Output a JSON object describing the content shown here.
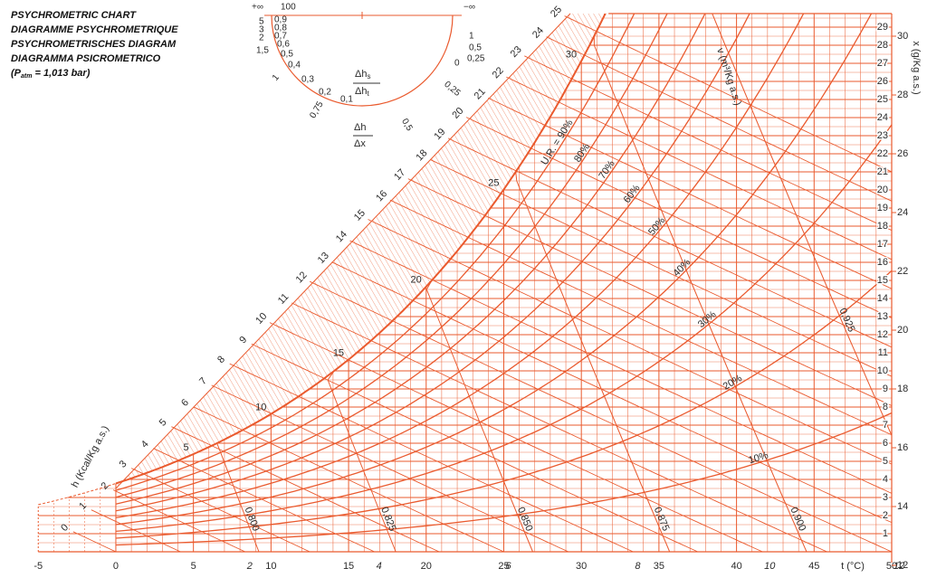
{
  "title_lines": [
    "PSYCHROMETRIC CHART",
    "DIAGRAMME PSYCHROMETRIQUE",
    "PSYCHROMETRISCHES DIAGRAM",
    "DIAGRAMMA PSICROMETRICO"
  ],
  "pressure": {
    "symbol": "(P",
    "subscript": "atm",
    "value": " = 1,013 bar)"
  },
  "protractor": {
    "top": [
      "+∞",
      "100",
      "−∞"
    ],
    "left": [
      "5",
      "3",
      "2",
      "1,5"
    ],
    "inner": [
      "0,9",
      "0,8",
      "0,7",
      "0,6",
      "0,5",
      "0,4",
      "0,3",
      "0,2",
      "0,1"
    ],
    "right": [
      "1",
      "0,5",
      "0,25",
      "0"
    ],
    "outer": [
      "1",
      "0,75",
      "0,5",
      "0,25"
    ],
    "fraction_1": {
      "num": "Δh",
      "num_sub": "s",
      "den": "Δh",
      "den_sub": "t"
    },
    "fraction_2": {
      "num": "Δh",
      "den": "Δx"
    }
  },
  "chart_data": {
    "type": "psychrometric",
    "color": "#ea5a2e",
    "x_label": "t (°C)",
    "y_label": "x (g/Kg a.s.)",
    "xlim": [
      -5,
      50
    ],
    "xticks": [
      -5,
      0,
      5,
      10,
      15,
      20,
      25,
      30,
      35,
      40,
      45,
      50
    ],
    "ylim": [
      0,
      29.75
    ],
    "yticks": [
      1,
      2,
      3,
      4,
      5,
      6,
      7,
      8,
      9,
      10,
      11,
      12,
      13,
      14,
      15,
      16,
      17,
      18,
      19,
      20,
      21,
      22,
      23,
      24,
      25,
      26,
      27,
      28,
      29
    ],
    "y2lim": [
      12,
      30
    ],
    "y2ticks": [
      12,
      14,
      16,
      18,
      20,
      22,
      24,
      26,
      28,
      30
    ],
    "saturation_labels": [
      5,
      10,
      15,
      20,
      25,
      30
    ],
    "rh": {
      "values": [
        10,
        20,
        30,
        40,
        50,
        60,
        70,
        80,
        90
      ],
      "value_labels": [
        "10%",
        "20%",
        "30%",
        "40%",
        "50%",
        "60%",
        "70%",
        "80%",
        "U.R. = 90%"
      ]
    },
    "enthalpy": {
      "label": "h (Kcal/Kg a.s.)",
      "values": [
        0,
        1,
        2,
        3,
        4,
        5,
        6,
        7,
        8,
        9,
        10,
        11,
        12,
        13,
        14,
        15,
        16,
        17,
        18,
        19,
        20,
        21,
        22,
        23,
        24,
        25
      ]
    },
    "volume": {
      "label": "v (m³/Kg a.s.)",
      "values": [
        0.8,
        0.825,
        0.85,
        0.875,
        0.9,
        0.925
      ],
      "value_labels": [
        "0,800",
        "0,825",
        "0,850",
        "0,875",
        "0,900",
        "0,925"
      ]
    }
  }
}
